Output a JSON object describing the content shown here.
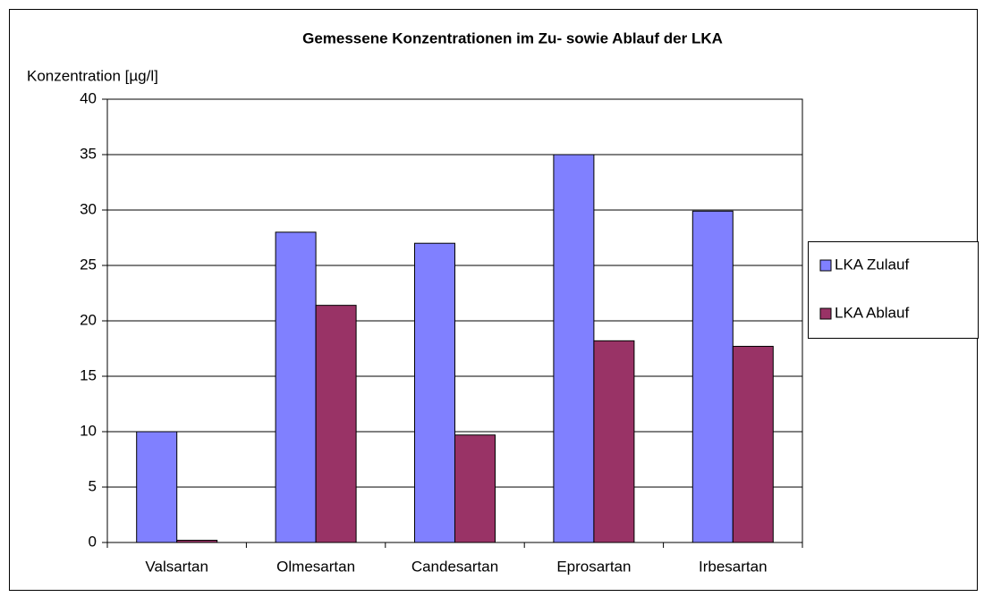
{
  "chart_data": {
    "type": "bar",
    "title": "Gemessene Konzentrationen im Zu- sowie Ablauf der LKA",
    "y_label": "Konzentration [µg/l]",
    "categories": [
      "Valsartan",
      "Olmesartan",
      "Candesartan",
      "Eprosartan",
      "Irbesartan"
    ],
    "series": [
      {
        "name": "LKA Zulauf",
        "color": "#8080ff",
        "values": [
          10,
          28,
          27,
          35,
          29.9
        ]
      },
      {
        "name": "LKA Ablauf",
        "color": "#993366",
        "values": [
          0.2,
          21.4,
          9.7,
          18.2,
          17.7
        ]
      }
    ],
    "ylim": [
      0,
      40
    ],
    "yticks": [
      0,
      5,
      10,
      15,
      20,
      25,
      30,
      35,
      40
    ],
    "grid": true,
    "legend": "right"
  }
}
